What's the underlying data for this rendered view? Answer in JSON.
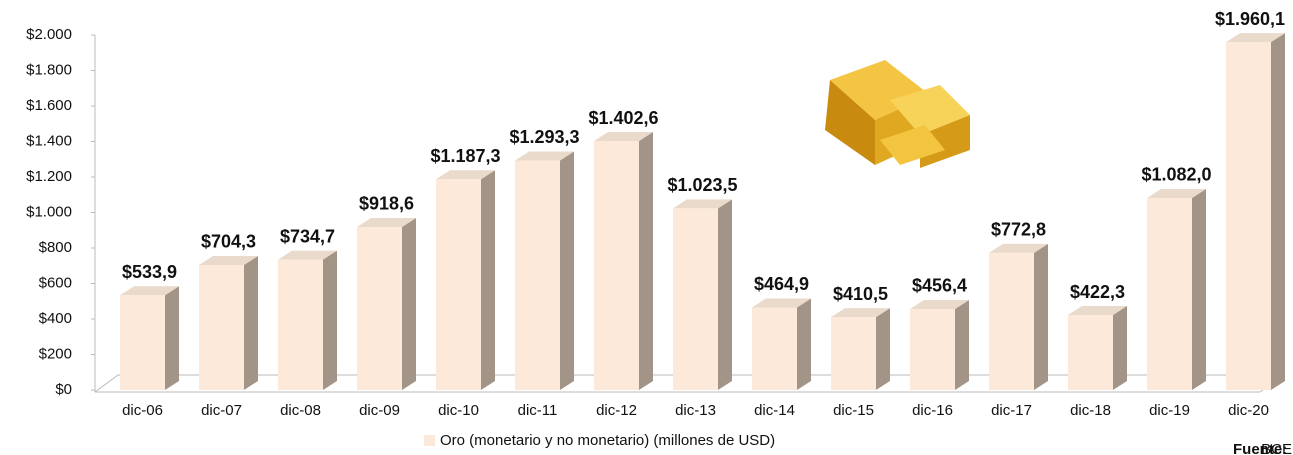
{
  "chart_data": {
    "type": "bar",
    "categories": [
      "dic-06",
      "dic-07",
      "dic-08",
      "dic-09",
      "dic-10",
      "dic-11",
      "dic-12",
      "dic-13",
      "dic-14",
      "dic-15",
      "dic-16",
      "dic-17",
      "dic-18",
      "dic-19",
      "dic-20"
    ],
    "series": [
      {
        "name": "Oro (monetario y no monetario) (millones de USD)",
        "color": "#fde9d9",
        "values": [
          533.9,
          704.3,
          734.7,
          918.6,
          1187.3,
          1293.3,
          1402.6,
          1023.5,
          464.9,
          410.5,
          456.4,
          772.8,
          422.3,
          1082.0,
          1960.1
        ],
        "value_labels": [
          "$533,9",
          "$704,3",
          "$734,7",
          "$918,6",
          "$1.187,3",
          "$1.293,3",
          "$1.402,6",
          "$1.023,5",
          "$464,9",
          "$410,5",
          "$456,4",
          "$772,8",
          "$422,3",
          "$1.082,0",
          "$1.960,1"
        ]
      }
    ],
    "ylim": [
      0,
      2000
    ],
    "yticks": [
      {
        "value": 0,
        "label": "$0"
      },
      {
        "value": 200,
        "label": "$200"
      },
      {
        "value": 400,
        "label": "$400"
      },
      {
        "value": 600,
        "label": "$600"
      },
      {
        "value": 800,
        "label": "$800"
      },
      {
        "value": 1000,
        "label": "$1.000"
      },
      {
        "value": 1200,
        "label": "$1.200"
      },
      {
        "value": 1400,
        "label": "$1.400"
      },
      {
        "value": 1600,
        "label": "$1.600"
      },
      {
        "value": 1800,
        "label": "$1.800"
      },
      {
        "value": 2000,
        "label": "$2.000"
      }
    ],
    "legend": "bottom",
    "source": {
      "label": "Fuente:",
      "text": "BCE"
    }
  }
}
